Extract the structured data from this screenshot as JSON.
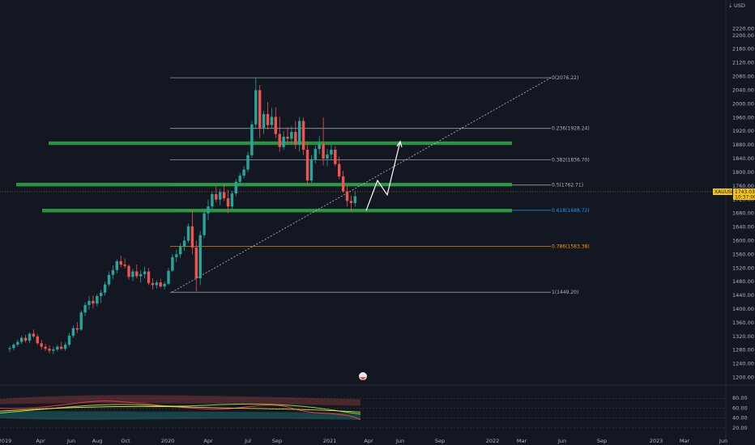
{
  "header": {
    "currency_label": "USD"
  },
  "colors": {
    "background": "#131722",
    "grid": "#1e222d",
    "text": "#b2b5be",
    "up": "#26a69a",
    "down": "#ef5350",
    "support": "#2ea043",
    "fib": "#b2b5be",
    "fib_618": "#2196f3",
    "fib_786": "#ff9800",
    "price_tag": "#f5c518"
  },
  "chart_data": {
    "type": "candlestick",
    "symbol": "XAUUSD",
    "last_price": "1743.03",
    "countdown": "10:37:00",
    "y_axis": {
      "range": [
        1180,
        2280
      ],
      "ticks": [
        "2220.00",
        "2200.00",
        "2160.00",
        "2120.00",
        "2080.00",
        "2040.00",
        "2000.00",
        "1960.00",
        "1920.00",
        "1880.00",
        "1840.00",
        "1800.00",
        "1760.00",
        "1720.00",
        "1680.00",
        "1640.00",
        "1600.00",
        "1560.00",
        "1520.00",
        "1480.00",
        "1440.00",
        "1400.00",
        "1360.00",
        "1320.00",
        "1280.00",
        "1240.00",
        "1200.00"
      ]
    },
    "x_axis": {
      "ticks": [
        "2019",
        "Apr",
        "Jun",
        "Aug",
        "Oct",
        "2020",
        "Apr",
        "Jul",
        "Sep",
        "2021",
        "Apr",
        "Jun",
        "Sep",
        "2022",
        "Mar",
        "Jun",
        "Sep",
        "2023",
        "Mar",
        "Jun"
      ]
    },
    "fib_levels": [
      {
        "label": "0(2076.22)",
        "price": 2076.22
      },
      {
        "label": "0.236(1928.24)",
        "price": 1928.24
      },
      {
        "label": "0.382(1836.70)",
        "price": 1836.7
      },
      {
        "label": "0.5(1762.71)",
        "price": 1762.71
      },
      {
        "label": "0.618(1688.72)",
        "price": 1688.72
      },
      {
        "label": "0.786(1583.38)",
        "price": 1583.38
      },
      {
        "label": "1(1449.20)",
        "price": 1449.2
      }
    ],
    "support_levels": [
      1885,
      1764,
      1688
    ],
    "candles": [
      {
        "o": 1283,
        "h": 1292,
        "l": 1274,
        "c": 1286
      },
      {
        "o": 1286,
        "h": 1300,
        "l": 1280,
        "c": 1296
      },
      {
        "o": 1296,
        "h": 1310,
        "l": 1290,
        "c": 1304
      },
      {
        "o": 1304,
        "h": 1322,
        "l": 1298,
        "c": 1316
      },
      {
        "o": 1316,
        "h": 1325,
        "l": 1302,
        "c": 1308
      },
      {
        "o": 1308,
        "h": 1332,
        "l": 1300,
        "c": 1328
      },
      {
        "o": 1328,
        "h": 1340,
        "l": 1315,
        "c": 1320
      },
      {
        "o": 1320,
        "h": 1326,
        "l": 1296,
        "c": 1300
      },
      {
        "o": 1300,
        "h": 1310,
        "l": 1282,
        "c": 1290
      },
      {
        "o": 1290,
        "h": 1298,
        "l": 1278,
        "c": 1284
      },
      {
        "o": 1284,
        "h": 1294,
        "l": 1270,
        "c": 1278
      },
      {
        "o": 1278,
        "h": 1290,
        "l": 1268,
        "c": 1282
      },
      {
        "o": 1282,
        "h": 1296,
        "l": 1276,
        "c": 1290
      },
      {
        "o": 1290,
        "h": 1304,
        "l": 1280,
        "c": 1284
      },
      {
        "o": 1284,
        "h": 1302,
        "l": 1278,
        "c": 1296
      },
      {
        "o": 1296,
        "h": 1330,
        "l": 1290,
        "c": 1322
      },
      {
        "o": 1322,
        "h": 1352,
        "l": 1316,
        "c": 1344
      },
      {
        "o": 1344,
        "h": 1362,
        "l": 1330,
        "c": 1340
      },
      {
        "o": 1340,
        "h": 1396,
        "l": 1336,
        "c": 1390
      },
      {
        "o": 1390,
        "h": 1420,
        "l": 1380,
        "c": 1412
      },
      {
        "o": 1412,
        "h": 1438,
        "l": 1398,
        "c": 1424
      },
      {
        "o": 1424,
        "h": 1440,
        "l": 1402,
        "c": 1416
      },
      {
        "o": 1416,
        "h": 1444,
        "l": 1408,
        "c": 1438
      },
      {
        "o": 1438,
        "h": 1456,
        "l": 1418,
        "c": 1448
      },
      {
        "o": 1448,
        "h": 1480,
        "l": 1440,
        "c": 1472
      },
      {
        "o": 1472,
        "h": 1510,
        "l": 1466,
        "c": 1500
      },
      {
        "o": 1500,
        "h": 1528,
        "l": 1488,
        "c": 1514
      },
      {
        "o": 1514,
        "h": 1546,
        "l": 1504,
        "c": 1540
      },
      {
        "o": 1540,
        "h": 1556,
        "l": 1522,
        "c": 1530
      },
      {
        "o": 1530,
        "h": 1548,
        "l": 1518,
        "c": 1526
      },
      {
        "o": 1526,
        "h": 1530,
        "l": 1486,
        "c": 1494
      },
      {
        "o": 1494,
        "h": 1518,
        "l": 1482,
        "c": 1510
      },
      {
        "o": 1510,
        "h": 1530,
        "l": 1490,
        "c": 1496
      },
      {
        "o": 1496,
        "h": 1514,
        "l": 1478,
        "c": 1502
      },
      {
        "o": 1502,
        "h": 1524,
        "l": 1490,
        "c": 1510
      },
      {
        "o": 1510,
        "h": 1520,
        "l": 1470,
        "c": 1476
      },
      {
        "o": 1476,
        "h": 1490,
        "l": 1458,
        "c": 1470
      },
      {
        "o": 1470,
        "h": 1484,
        "l": 1460,
        "c": 1478
      },
      {
        "o": 1478,
        "h": 1488,
        "l": 1462,
        "c": 1466
      },
      {
        "o": 1466,
        "h": 1480,
        "l": 1458,
        "c": 1474
      },
      {
        "o": 1474,
        "h": 1520,
        "l": 1470,
        "c": 1512
      },
      {
        "o": 1512,
        "h": 1560,
        "l": 1508,
        "c": 1552
      },
      {
        "o": 1552,
        "h": 1574,
        "l": 1538,
        "c": 1560
      },
      {
        "o": 1560,
        "h": 1592,
        "l": 1550,
        "c": 1582
      },
      {
        "o": 1582,
        "h": 1612,
        "l": 1570,
        "c": 1600
      },
      {
        "o": 1600,
        "h": 1650,
        "l": 1594,
        "c": 1642
      },
      {
        "o": 1642,
        "h": 1690,
        "l": 1560,
        "c": 1580
      },
      {
        "o": 1580,
        "h": 1600,
        "l": 1452,
        "c": 1490
      },
      {
        "o": 1490,
        "h": 1628,
        "l": 1470,
        "c": 1616
      },
      {
        "o": 1616,
        "h": 1690,
        "l": 1608,
        "c": 1680
      },
      {
        "o": 1680,
        "h": 1720,
        "l": 1660,
        "c": 1700
      },
      {
        "o": 1700,
        "h": 1744,
        "l": 1690,
        "c": 1736
      },
      {
        "o": 1736,
        "h": 1760,
        "l": 1712,
        "c": 1720
      },
      {
        "o": 1720,
        "h": 1752,
        "l": 1704,
        "c": 1742
      },
      {
        "o": 1742,
        "h": 1765,
        "l": 1716,
        "c": 1724
      },
      {
        "o": 1724,
        "h": 1748,
        "l": 1680,
        "c": 1700
      },
      {
        "o": 1700,
        "h": 1746,
        "l": 1692,
        "c": 1738
      },
      {
        "o": 1738,
        "h": 1780,
        "l": 1730,
        "c": 1772
      },
      {
        "o": 1772,
        "h": 1798,
        "l": 1760,
        "c": 1790
      },
      {
        "o": 1790,
        "h": 1818,
        "l": 1782,
        "c": 1808
      },
      {
        "o": 1808,
        "h": 1860,
        "l": 1800,
        "c": 1850
      },
      {
        "o": 1850,
        "h": 1950,
        "l": 1842,
        "c": 1940
      },
      {
        "o": 1940,
        "h": 2076,
        "l": 1930,
        "c": 2040
      },
      {
        "o": 2040,
        "h": 2055,
        "l": 1900,
        "c": 1930
      },
      {
        "o": 1930,
        "h": 1980,
        "l": 1912,
        "c": 1970
      },
      {
        "o": 1970,
        "h": 2005,
        "l": 1925,
        "c": 1938
      },
      {
        "o": 1938,
        "h": 1988,
        "l": 1928,
        "c": 1962
      },
      {
        "o": 1962,
        "h": 1990,
        "l": 1900,
        "c": 1912
      },
      {
        "o": 1912,
        "h": 1962,
        "l": 1860,
        "c": 1874
      },
      {
        "o": 1874,
        "h": 1920,
        "l": 1866,
        "c": 1904
      },
      {
        "o": 1904,
        "h": 1932,
        "l": 1880,
        "c": 1898
      },
      {
        "o": 1898,
        "h": 1934,
        "l": 1882,
        "c": 1918
      },
      {
        "o": 1918,
        "h": 1950,
        "l": 1868,
        "c": 1882
      },
      {
        "o": 1882,
        "h": 1962,
        "l": 1860,
        "c": 1950
      },
      {
        "o": 1950,
        "h": 1960,
        "l": 1850,
        "c": 1866
      },
      {
        "o": 1866,
        "h": 1890,
        "l": 1766,
        "c": 1776
      },
      {
        "o": 1776,
        "h": 1850,
        "l": 1768,
        "c": 1838
      },
      {
        "o": 1838,
        "h": 1878,
        "l": 1826,
        "c": 1868
      },
      {
        "o": 1868,
        "h": 1906,
        "l": 1852,
        "c": 1882
      },
      {
        "o": 1882,
        "h": 1960,
        "l": 1820,
        "c": 1840
      },
      {
        "o": 1840,
        "h": 1868,
        "l": 1818,
        "c": 1852
      },
      {
        "o": 1852,
        "h": 1880,
        "l": 1838,
        "c": 1866
      },
      {
        "o": 1866,
        "h": 1876,
        "l": 1818,
        "c": 1824
      },
      {
        "o": 1824,
        "h": 1846,
        "l": 1780,
        "c": 1788
      },
      {
        "o": 1788,
        "h": 1804,
        "l": 1740,
        "c": 1744
      },
      {
        "o": 1744,
        "h": 1760,
        "l": 1700,
        "c": 1716
      },
      {
        "o": 1716,
        "h": 1732,
        "l": 1686,
        "c": 1710
      },
      {
        "o": 1710,
        "h": 1744,
        "l": 1700,
        "c": 1730
      }
    ],
    "trendline": {
      "from": [
        48,
        1449.2
      ],
      "to": [
        134,
        2076.22
      ]
    },
    "projection_path": [
      [
        87,
        1688
      ],
      [
        90,
        1776
      ],
      [
        93,
        1734
      ],
      [
        99,
        1890
      ]
    ],
    "indicator": {
      "y_ticks": [
        "80.00",
        "60.00",
        "40.00",
        "20.00"
      ],
      "range": [
        10,
        100
      ],
      "value": 37,
      "note": "RSI-style oscillator with red/green bands"
    }
  }
}
